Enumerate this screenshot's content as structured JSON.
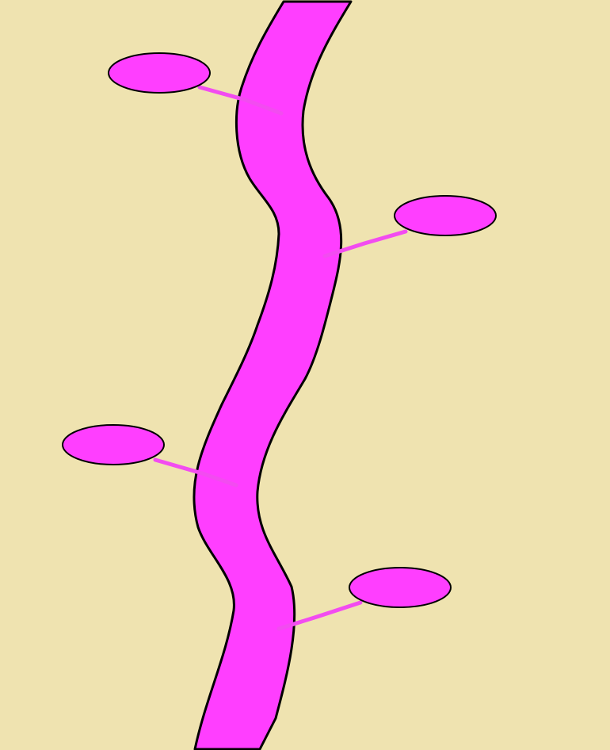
{
  "colors": {
    "background": "#EFE3B0",
    "path_fill": "#FF3EFF",
    "node_fill": "#FF3EFF",
    "branch_stroke": "#F24CF0",
    "outline": "#000000"
  },
  "scene": {
    "node_count": 4
  }
}
